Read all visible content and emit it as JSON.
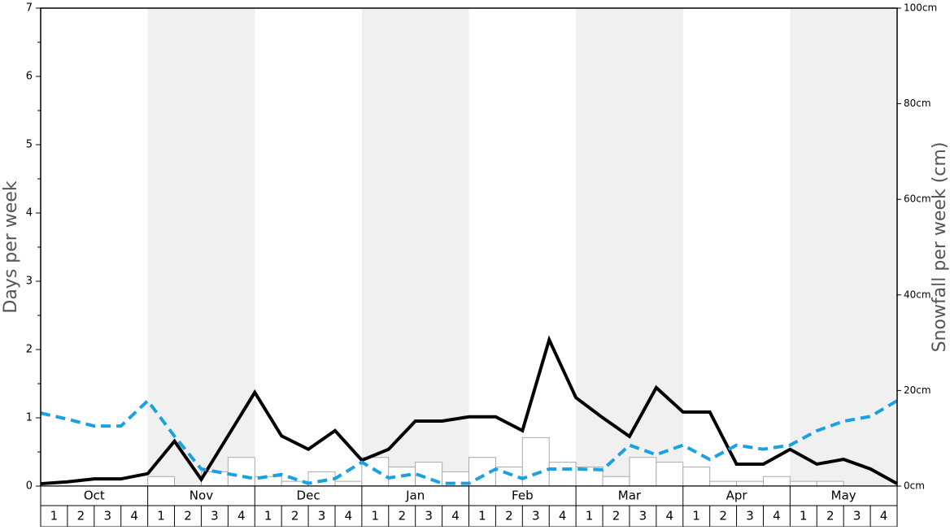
{
  "chart_data": {
    "type": "combo",
    "y_label": "Days per week",
    "y2_label": "Snowfall per week (cm)",
    "months": [
      "Oct",
      "Nov",
      "Dec",
      "Jan",
      "Feb",
      "Mar",
      "Apr",
      "May"
    ],
    "week_labels": [
      "1",
      "2",
      "3",
      "4"
    ],
    "ylim": [
      0,
      7
    ],
    "yticks": [
      0,
      1,
      2,
      3,
      4,
      5,
      6,
      7
    ],
    "y2lim": [
      0,
      100
    ],
    "y2ticks": [
      {
        "value": 0,
        "label": "0cm"
      },
      {
        "value": 20,
        "label": "20cm"
      },
      {
        "value": 40,
        "label": "40cm"
      },
      {
        "value": 60,
        "label": "60cm"
      },
      {
        "value": 80,
        "label": "80cm"
      },
      {
        "value": 100,
        "label": "100cm"
      }
    ],
    "band_color": "#f0f0f0",
    "series": [
      {
        "type": "bar",
        "color": "#ffffff",
        "edge_color": "#aaaaaa",
        "values": [
          0,
          0,
          0,
          0,
          0.14,
          0,
          0.21,
          0.42,
          0.14,
          0.07,
          0.21,
          0.07,
          0.42,
          0.28,
          0.35,
          0.21,
          0.42,
          0.28,
          0.71,
          0.35,
          0.28,
          0.14,
          0.42,
          0.35,
          0.28,
          0.07,
          0.07,
          0.14,
          0.07,
          0.07,
          0,
          0
        ]
      },
      {
        "type": "line",
        "axis": "y2",
        "color": "#000000",
        "dashed": false,
        "values": [
          0.5,
          0.9,
          1.5,
          1.5,
          2.6,
          9.4,
          1.4,
          10.5,
          19.6,
          10.5,
          7.7,
          11.6,
          5.4,
          7.7,
          13.6,
          13.6,
          14.5,
          14.5,
          11.6,
          30.6,
          18.5,
          14.3,
          10.4,
          20.6,
          15.5,
          15.5,
          4.6,
          4.6,
          7.7,
          4.6,
          5.6,
          3.6,
          0.5
        ]
      },
      {
        "type": "line",
        "axis": "y",
        "color": "#1ba1e2",
        "dashed": true,
        "values": [
          1.07,
          0.98,
          0.88,
          0.88,
          1.25,
          0.73,
          0.25,
          0.18,
          0.11,
          0.17,
          0.04,
          0.11,
          0.35,
          0.12,
          0.18,
          0.04,
          0.04,
          0.25,
          0.11,
          0.25,
          0.25,
          0.24,
          0.6,
          0.46,
          0.6,
          0.39,
          0.6,
          0.54,
          0.6,
          0.81,
          0.95,
          1.02,
          1.25
        ]
      }
    ]
  }
}
